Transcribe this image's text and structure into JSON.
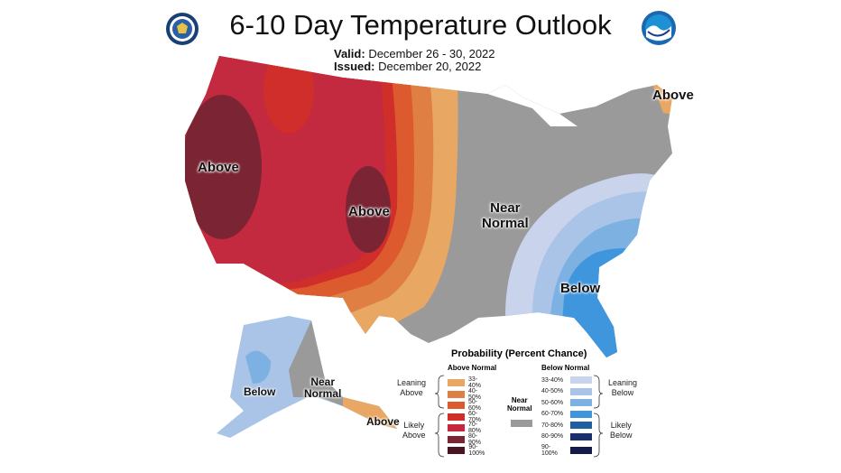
{
  "title": "6-10 Day Temperature Outlook",
  "valid_label": "Valid:",
  "valid_value": "December 26 - 30, 2022",
  "issued_label": "Issued:",
  "issued_value": "December 20, 2022",
  "logos": {
    "left": "doc-seal-icon",
    "right": "noaa-logo-icon"
  },
  "map_labels": {
    "above_west": "Above",
    "above_central": "Above",
    "above_maine": "Above",
    "near_normal_line1": "Near",
    "near_normal_line2": "Normal",
    "below_southeast": "Below",
    "alaska_below": "Below",
    "alaska_near_line1": "Near",
    "alaska_near_line2": "Normal",
    "alaska_above": "Above"
  },
  "legend": {
    "title": "Probability (Percent Chance)",
    "above_header": "Above Normal",
    "below_header": "Below Normal",
    "leaning_above_line1": "Leaning",
    "leaning_above_line2": "Above",
    "likely_above_line1": "Likely",
    "likely_above_line2": "Above",
    "near_line1": "Near",
    "near_line2": "Normal",
    "leaning_below_line1": "Leaning",
    "leaning_below_line2": "Below",
    "likely_below_line1": "Likely",
    "likely_below_line2": "Below",
    "above_bins": [
      {
        "label": "33-40%",
        "color": "#e8a863"
      },
      {
        "label": "40-50%",
        "color": "#e07f43"
      },
      {
        "label": "50-60%",
        "color": "#dd5a2e"
      },
      {
        "label": "60-70%",
        "color": "#cf2e2a"
      },
      {
        "label": "70-80%",
        "color": "#c42a3f"
      },
      {
        "label": "80-90%",
        "color": "#7b2433"
      },
      {
        "label": "90-100%",
        "color": "#4a1420"
      }
    ],
    "near_color": "#9a9a9a",
    "below_bins": [
      {
        "label": "33-40%",
        "color": "#c9d3ec"
      },
      {
        "label": "40-50%",
        "color": "#a9c4e6"
      },
      {
        "label": "50-60%",
        "color": "#7db1e2"
      },
      {
        "label": "60-70%",
        "color": "#3f96dc"
      },
      {
        "label": "70-80%",
        "color": "#1f5fa0"
      },
      {
        "label": "80-90%",
        "color": "#1b2f6b"
      },
      {
        "label": "90-100%",
        "color": "#141a4a"
      }
    ]
  }
}
